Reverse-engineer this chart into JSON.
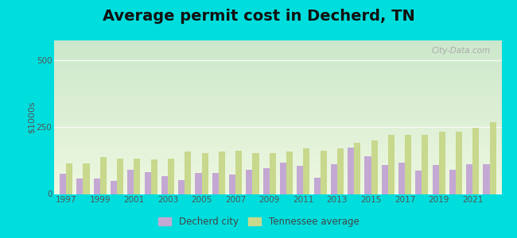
{
  "title": "Average permit cost in Decherd, TN",
  "ylabel": "$1000s",
  "background_outer": "#00dddd",
  "years": [
    1997,
    1998,
    1999,
    2000,
    2001,
    2002,
    2003,
    2004,
    2005,
    2006,
    2007,
    2008,
    2009,
    2010,
    2011,
    2012,
    2013,
    2014,
    2015,
    2016,
    2017,
    2018,
    2019,
    2020,
    2021,
    2022
  ],
  "decherd": [
    75,
    58,
    58,
    50,
    90,
    82,
    68,
    52,
    80,
    80,
    72,
    90,
    98,
    118,
    105,
    62,
    110,
    175,
    140,
    108,
    118,
    88,
    108,
    92,
    112,
    112
  ],
  "tennessee": [
    115,
    115,
    138,
    132,
    132,
    128,
    132,
    158,
    152,
    158,
    162,
    152,
    152,
    158,
    172,
    162,
    172,
    192,
    202,
    222,
    222,
    222,
    232,
    232,
    248,
    270
  ],
  "decherd_color": "#c4a8d4",
  "tennessee_color": "#c8d88c",
  "ylim_max": 575,
  "yticks": [
    0,
    250,
    500
  ],
  "bar_width": 0.38,
  "title_fontsize": 14,
  "legend_decherd": "Decherd city",
  "legend_tennessee": "Tennessee average",
  "grad_top_color": "#cce8cc",
  "grad_bottom_color": "#eef8e0"
}
